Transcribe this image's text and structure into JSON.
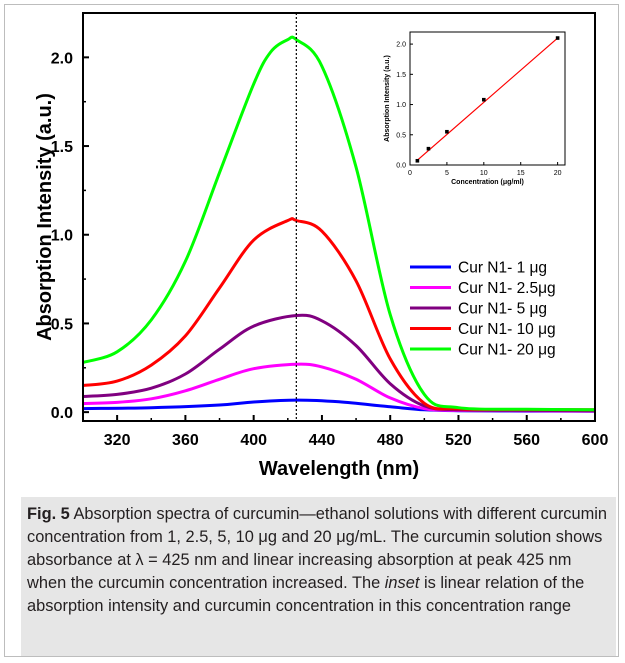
{
  "main_chart": {
    "type": "line",
    "xlabel": "Wavelength (nm)",
    "ylabel": "Absorption Intensity (a.u.)",
    "xlim": [
      300,
      600
    ],
    "ylim": [
      -0.05,
      2.25
    ],
    "x_ticks": [
      "320",
      "360",
      "400",
      "440",
      "480",
      "520",
      "560",
      "600"
    ],
    "y_ticks": [
      "0.0",
      "0.5",
      "1.0",
      "1.5",
      "2.0"
    ],
    "peak_marker_x": 425,
    "legend_position": "center-right",
    "series": [
      {
        "name": "Cur N1- 1  μg",
        "color": "#0000ff",
        "x": [
          300,
          340,
          380,
          400,
          425,
          450,
          480,
          500,
          520,
          560,
          600
        ],
        "y": [
          0.02,
          0.025,
          0.04,
          0.057,
          0.068,
          0.058,
          0.03,
          0.013,
          0.008,
          0.006,
          0.005
        ]
      },
      {
        "name": "Cur N1- 2.5μg",
        "color": "#ff00ff",
        "x": [
          300,
          320,
          340,
          360,
          380,
          400,
          425,
          440,
          460,
          480,
          500,
          520,
          560,
          600
        ],
        "y": [
          0.048,
          0.055,
          0.075,
          0.12,
          0.185,
          0.245,
          0.27,
          0.255,
          0.185,
          0.08,
          0.02,
          0.01,
          0.008,
          0.006
        ]
      },
      {
        "name": "Cur N1- 5  μg",
        "color": "#800080",
        "x": [
          300,
          320,
          340,
          360,
          380,
          400,
          425,
          440,
          460,
          480,
          500,
          520,
          560,
          600
        ],
        "y": [
          0.088,
          0.1,
          0.135,
          0.215,
          0.355,
          0.485,
          0.545,
          0.515,
          0.375,
          0.16,
          0.035,
          0.013,
          0.01,
          0.008
        ]
      },
      {
        "name": "Cur N1- 10 μg",
        "color": "#ff0000",
        "x": [
          300,
          320,
          340,
          360,
          380,
          400,
          420,
          425,
          440,
          460,
          480,
          500,
          520,
          560,
          600
        ],
        "y": [
          0.15,
          0.175,
          0.265,
          0.43,
          0.7,
          0.97,
          1.08,
          1.08,
          1.02,
          0.74,
          0.3,
          0.05,
          0.018,
          0.015,
          0.013
        ]
      },
      {
        "name": "Cur N1- 20 μg",
        "color": "#00ff00",
        "x": [
          300,
          320,
          340,
          360,
          380,
          400,
          410,
          420,
          425,
          440,
          460,
          480,
          500,
          520,
          560,
          600
        ],
        "y": [
          0.28,
          0.34,
          0.52,
          0.85,
          1.35,
          1.85,
          2.03,
          2.1,
          2.1,
          1.95,
          1.38,
          0.55,
          0.1,
          0.025,
          0.016,
          0.013
        ]
      }
    ]
  },
  "inset_chart": {
    "type": "scatter",
    "xlabel": "Concentration (μg/ml)",
    "ylabel": "Absorption Intensity (a.u.)",
    "xlim": [
      0,
      21
    ],
    "ylim": [
      0,
      2.2
    ],
    "x_ticks": [
      "0",
      "5",
      "10",
      "15",
      "20"
    ],
    "y_ticks": [
      "0.0",
      "0.5",
      "1.0",
      "1.5",
      "2.0"
    ],
    "points_x": [
      1,
      2.5,
      5,
      10,
      20
    ],
    "points_y": [
      0.07,
      0.27,
      0.55,
      1.08,
      2.1
    ],
    "fit_line": {
      "x": [
        1,
        20
      ],
      "y": [
        0.08,
        2.1
      ]
    },
    "point_color": "#000000",
    "fit_color": "#ff0000"
  },
  "caption": {
    "label": "Fig. 5",
    "text_1": "  Absorption spectra of curcumin—ethanol solutions with different curcumin concentration from 1, 2.5, 5, 10 μg and 20 μg/mL. The curcumin solution shows absorbance at λ = 425 nm and linear increasing absorption at peak 425 nm when the curcumin concentration increased. The ",
    "inset_word": "inset",
    "text_2": " is linear relation of the absorption intensity and curcumin concentration in this concentration range"
  }
}
